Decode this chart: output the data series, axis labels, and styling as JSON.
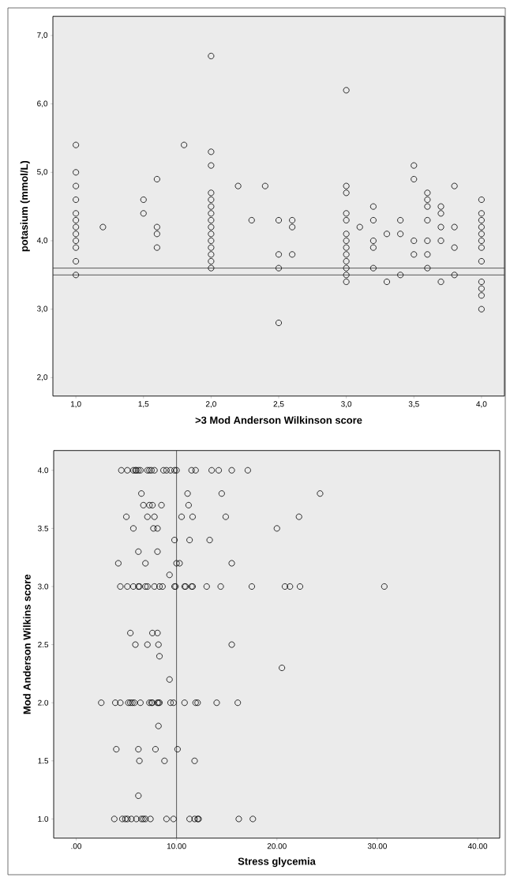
{
  "chart_data": [
    {
      "type": "scatter",
      "xlabel": ">3 Mod Anderson Wilkinson score",
      "ylabel": "potasium (mmol/L)",
      "marker": "circle",
      "color": "#000000",
      "x": [
        1.0,
        1.0,
        1.0,
        1.0,
        1.0,
        1.0,
        1.0,
        1.0,
        1.0,
        1.0,
        1.0,
        1.0,
        1.2,
        1.5,
        1.5,
        1.6,
        1.6,
        1.6,
        1.6,
        1.8,
        2.0,
        2.0,
        2.0,
        2.0,
        2.0,
        2.0,
        2.0,
        2.0,
        2.0,
        2.0,
        2.0,
        2.0,
        2.0,
        2.0,
        2.0,
        2.2,
        2.3,
        2.4,
        2.5,
        2.5,
        2.5,
        2.5,
        2.6,
        2.6,
        2.6,
        3.0,
        3.0,
        3.0,
        3.0,
        3.0,
        3.0,
        3.0,
        3.0,
        3.0,
        3.0,
        3.0,
        3.0,
        3.0,
        3.1,
        3.2,
        3.2,
        3.2,
        3.2,
        3.2,
        3.3,
        3.3,
        3.4,
        3.4,
        3.4,
        3.5,
        3.5,
        3.5,
        3.5,
        3.6,
        3.6,
        3.6,
        3.6,
        3.6,
        3.6,
        3.6,
        3.7,
        3.7,
        3.7,
        3.7,
        3.7,
        3.8,
        3.8,
        3.8,
        3.8,
        4.0,
        4.0,
        4.0,
        4.0,
        4.0,
        4.0,
        4.0,
        4.0,
        4.0,
        4.0,
        4.0,
        4.0
      ],
      "values": [
        5.4,
        5.0,
        4.8,
        4.6,
        4.4,
        4.3,
        4.2,
        4.1,
        4.0,
        3.9,
        3.7,
        3.5,
        4.2,
        4.6,
        4.4,
        4.9,
        4.2,
        4.1,
        3.9,
        5.4,
        6.7,
        5.3,
        5.1,
        4.7,
        4.6,
        4.5,
        4.4,
        4.3,
        4.2,
        4.1,
        4.0,
        3.9,
        3.8,
        3.7,
        3.6,
        4.8,
        4.3,
        4.8,
        4.3,
        3.8,
        3.6,
        2.8,
        4.3,
        4.2,
        3.8,
        6.2,
        4.8,
        4.7,
        4.4,
        4.3,
        4.1,
        4.0,
        3.9,
        3.8,
        3.7,
        3.6,
        3.5,
        3.4,
        4.2,
        4.5,
        4.3,
        4.0,
        3.9,
        3.6,
        4.1,
        3.4,
        4.3,
        4.1,
        3.5,
        5.1,
        4.9,
        4.0,
        3.8,
        4.7,
        4.6,
        4.5,
        4.3,
        4.0,
        3.8,
        3.6,
        4.5,
        4.4,
        4.2,
        4.0,
        3.4,
        4.8,
        4.2,
        3.9,
        3.5,
        4.6,
        4.4,
        4.3,
        4.2,
        4.1,
        4.0,
        3.9,
        3.7,
        3.4,
        3.3,
        3.2,
        3.0
      ],
      "xlim": [
        0.83,
        4.17
      ],
      "ylim": [
        1.73,
        7.28
      ],
      "xticks": [
        {
          "value": 1.0,
          "label": "1,0"
        },
        {
          "value": 1.5,
          "label": "1,5"
        },
        {
          "value": 2.0,
          "label": "2,0"
        },
        {
          "value": 2.5,
          "label": "2,5"
        },
        {
          "value": 3.0,
          "label": "3,0"
        },
        {
          "value": 3.5,
          "label": "3,5"
        },
        {
          "value": 4.0,
          "label": "4,0"
        }
      ],
      "yticks": [
        {
          "value": 2.0,
          "label": "2,0"
        },
        {
          "value": 3.0,
          "label": "3,0"
        },
        {
          "value": 4.0,
          "label": "4,0"
        },
        {
          "value": 5.0,
          "label": "5,0"
        },
        {
          "value": 6.0,
          "label": "6,0"
        },
        {
          "value": 7.0,
          "label": "7,0"
        }
      ],
      "ref_lines": [
        {
          "axis": "y",
          "value": 3.6
        },
        {
          "axis": "y",
          "value": 3.5
        }
      ]
    },
    {
      "type": "scatter",
      "xlabel": "Stress glycemia",
      "ylabel": "Mod Anderson Wilkins score",
      "marker": "circle",
      "color": "#000000",
      "x": [
        4.5,
        5.1,
        5.7,
        5.9,
        6.0,
        6.2,
        6.4,
        7.1,
        7.3,
        7.5,
        7.8,
        8.7,
        9.0,
        9.4,
        9.8,
        10.0,
        11.5,
        11.9,
        13.5,
        14.2,
        15.5,
        17.1,
        6.5,
        11.1,
        14.5,
        24.3,
        6.7,
        7.3,
        7.6,
        8.5,
        11.2,
        5.0,
        7.1,
        7.8,
        10.5,
        11.6,
        14.9,
        22.2,
        5.7,
        7.7,
        8.1,
        20.0,
        9.8,
        11.3,
        13.3,
        6.2,
        8.1,
        4.2,
        6.9,
        10.0,
        10.3,
        15.5,
        9.3,
        4.4,
        5.1,
        5.7,
        6.2,
        6.3,
        6.9,
        7.1,
        7.8,
        8.3,
        8.6,
        9.8,
        9.9,
        10.8,
        10.9,
        11.5,
        11.6,
        13.0,
        14.4,
        17.5,
        20.8,
        21.3,
        22.3,
        30.7,
        5.4,
        7.6,
        8.1,
        5.9,
        7.1,
        8.2,
        15.5,
        8.3,
        20.5,
        9.3,
        2.5,
        3.9,
        4.4,
        5.2,
        5.4,
        5.6,
        5.8,
        6.4,
        7.3,
        7.5,
        7.6,
        8.1,
        8.2,
        8.3,
        9.4,
        9.7,
        10.8,
        11.9,
        12.1,
        14.0,
        16.1,
        8.2,
        4.0,
        6.2,
        7.9,
        10.1,
        6.3,
        8.8,
        11.8,
        6.2,
        3.8,
        4.6,
        4.9,
        5.1,
        5.5,
        6.0,
        6.5,
        6.7,
        6.9,
        7.4,
        9.0,
        9.7,
        11.3,
        11.8,
        12.1,
        12.2,
        16.2,
        17.6
      ],
      "values": [
        4.0,
        4.0,
        4.0,
        4.0,
        4.0,
        4.0,
        4.0,
        4.0,
        4.0,
        4.0,
        4.0,
        4.0,
        4.0,
        4.0,
        4.0,
        4.0,
        4.0,
        4.0,
        4.0,
        4.0,
        4.0,
        4.0,
        3.8,
        3.8,
        3.8,
        3.8,
        3.7,
        3.7,
        3.7,
        3.7,
        3.7,
        3.6,
        3.6,
        3.6,
        3.6,
        3.6,
        3.6,
        3.6,
        3.5,
        3.5,
        3.5,
        3.5,
        3.4,
        3.4,
        3.4,
        3.3,
        3.3,
        3.2,
        3.2,
        3.2,
        3.2,
        3.2,
        3.1,
        3.0,
        3.0,
        3.0,
        3.0,
        3.0,
        3.0,
        3.0,
        3.0,
        3.0,
        3.0,
        3.0,
        3.0,
        3.0,
        3.0,
        3.0,
        3.0,
        3.0,
        3.0,
        3.0,
        3.0,
        3.0,
        3.0,
        3.0,
        2.6,
        2.6,
        2.6,
        2.5,
        2.5,
        2.5,
        2.5,
        2.4,
        2.3,
        2.2,
        2.0,
        2.0,
        2.0,
        2.0,
        2.0,
        2.0,
        2.0,
        2.0,
        2.0,
        2.0,
        2.0,
        2.0,
        2.0,
        2.0,
        2.0,
        2.0,
        2.0,
        2.0,
        2.0,
        2.0,
        2.0,
        1.8,
        1.6,
        1.6,
        1.6,
        1.6,
        1.5,
        1.5,
        1.5,
        1.2,
        1.0,
        1.0,
        1.0,
        1.0,
        1.0,
        1.0,
        1.0,
        1.0,
        1.0,
        1.0,
        1.0,
        1.0,
        1.0,
        1.0,
        1.0,
        1.0,
        1.0,
        1.0
      ],
      "xlim": [
        -2.24,
        42.2
      ],
      "ylim": [
        0.835,
        4.17
      ],
      "xticks": [
        {
          "value": 0,
          "label": ".00"
        },
        {
          "value": 10,
          "label": "10.00"
        },
        {
          "value": 20,
          "label": "20.00"
        },
        {
          "value": 30,
          "label": "30.00"
        },
        {
          "value": 40,
          "label": "40.00"
        }
      ],
      "yticks": [
        {
          "value": 1.0,
          "label": "1.0"
        },
        {
          "value": 1.5,
          "label": "1.5"
        },
        {
          "value": 2.0,
          "label": "2.0"
        },
        {
          "value": 2.5,
          "label": "2.5"
        },
        {
          "value": 3.0,
          "label": "3.0"
        },
        {
          "value": 3.5,
          "label": "3.5"
        },
        {
          "value": 4.0,
          "label": "4.0"
        }
      ],
      "ref_lines": [
        {
          "axis": "x",
          "value": 10
        }
      ]
    }
  ]
}
